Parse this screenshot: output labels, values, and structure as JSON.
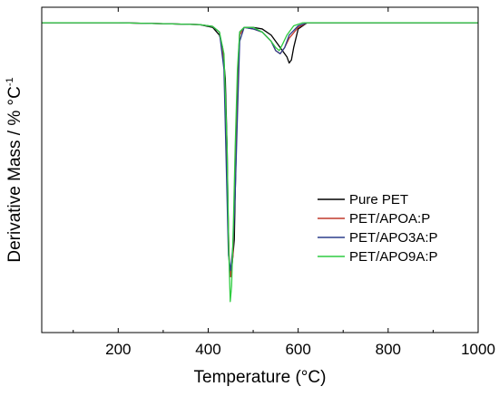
{
  "chart_data": {
    "type": "line",
    "title": "",
    "xlabel": "Temperature (°C)",
    "ylabel_main": "Derivative Mass / % °C",
    "ylabel_sup": "-1",
    "xlim": [
      30,
      1000
    ],
    "ylim": [
      -100,
      5
    ],
    "xticks": [
      200,
      400,
      600,
      800,
      1000
    ],
    "yticks_labeled": false,
    "grid": false,
    "legend_position": "right",
    "series": [
      {
        "name": "Pure PET",
        "color": "#000000",
        "x": [
          30,
          100,
          200,
          300,
          380,
          410,
          425,
          432,
          438,
          442,
          445,
          448,
          452,
          455,
          458,
          460,
          463,
          466,
          470,
          480,
          500,
          520,
          540,
          555,
          565,
          575,
          580,
          585,
          590,
          600,
          620,
          640,
          700,
          800,
          900,
          1000
        ],
        "y": [
          0,
          0,
          0,
          -0.3,
          -0.6,
          -1.5,
          -4,
          -8,
          -18,
          -40,
          -70,
          -82,
          -80,
          -75,
          -70,
          -55,
          -35,
          -15,
          -3,
          -1.5,
          -1.5,
          -2,
          -4,
          -7,
          -9,
          -11,
          -13,
          -12,
          -8,
          -2,
          0,
          0,
          0,
          0,
          0,
          0
        ]
      },
      {
        "name": "PET/APOA:P",
        "color": "#c0392b",
        "x": [
          30,
          100,
          200,
          300,
          380,
          410,
          425,
          435,
          442,
          447,
          450,
          455,
          458,
          462,
          466,
          470,
          480,
          500,
          520,
          540,
          550,
          560,
          570,
          580,
          600,
          620,
          640,
          700,
          800,
          900,
          1000
        ],
        "y": [
          0,
          0,
          0,
          -0.3,
          -0.6,
          -1.2,
          -3,
          -12,
          -50,
          -78,
          -82,
          -75,
          -60,
          -40,
          -18,
          -4,
          -1.5,
          -2,
          -3,
          -6,
          -9,
          -10,
          -8,
          -5,
          -1.5,
          0,
          0,
          0,
          0,
          0,
          0
        ]
      },
      {
        "name": "PET/APO3A:P",
        "color": "#2c3e8c",
        "x": [
          30,
          100,
          200,
          300,
          380,
          410,
          425,
          435,
          440,
          445,
          450,
          455,
          460,
          465,
          470,
          480,
          500,
          520,
          540,
          550,
          560,
          570,
          580,
          600,
          620,
          640,
          700,
          800,
          900,
          1000
        ],
        "y": [
          0,
          0,
          0,
          -0.3,
          -0.6,
          -1.2,
          -3,
          -15,
          -45,
          -75,
          -80,
          -72,
          -55,
          -30,
          -6,
          -1.5,
          -2,
          -3,
          -6,
          -9,
          -10,
          -8,
          -4,
          -1,
          0,
          0,
          0,
          0,
          0,
          0
        ]
      },
      {
        "name": "PET/APO9A:P",
        "color": "#2ecc40",
        "x": [
          30,
          100,
          200,
          300,
          380,
          410,
          425,
          435,
          442,
          446,
          449,
          452,
          456,
          460,
          465,
          470,
          480,
          500,
          520,
          540,
          550,
          558,
          565,
          575,
          590,
          610,
          640,
          700,
          800,
          900,
          1000
        ],
        "y": [
          0,
          0,
          0,
          -0.3,
          -0.6,
          -1.2,
          -3,
          -10,
          -40,
          -75,
          -90,
          -85,
          -65,
          -40,
          -15,
          -3,
          -1.5,
          -1.5,
          -3,
          -6,
          -8,
          -9,
          -7,
          -4,
          -1,
          0,
          0,
          0,
          0,
          0,
          0
        ]
      }
    ]
  }
}
